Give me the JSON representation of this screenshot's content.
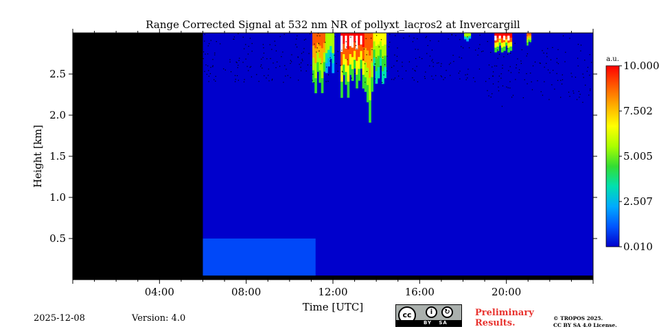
{
  "chart_data": {
    "type": "heatmap",
    "title": "Range Corrected Signal at 532 nm NR of pollyxt_lacros2 at Invercargill",
    "xlabel": "Time [UTC]",
    "ylabel": "Height [km]",
    "xlim_hours": [
      0,
      24
    ],
    "ylim_km": [
      0,
      3.0
    ],
    "x_ticks": [
      {
        "hour": 4,
        "label": "04:00"
      },
      {
        "hour": 8,
        "label": "08:00"
      },
      {
        "hour": 12,
        "label": "12:00"
      },
      {
        "hour": 16,
        "label": "16:00"
      },
      {
        "hour": 20,
        "label": "20:00"
      }
    ],
    "y_ticks": [
      {
        "km": 0.5,
        "label": "0.5"
      },
      {
        "km": 1.0,
        "label": "1.0"
      },
      {
        "km": 1.5,
        "label": "1.5"
      },
      {
        "km": 2.0,
        "label": "2.0"
      },
      {
        "km": 2.5,
        "label": "2.5"
      }
    ],
    "no_data_interval_hours": [
      0,
      6
    ],
    "background_signal": 0.6,
    "boundary_layer": [
      {
        "start_hour": 6.0,
        "end_hour": 11.2,
        "top_km": 0.5,
        "signal": 1.7
      },
      {
        "start_hour": 11.2,
        "end_hour": 24.0,
        "top_km": 0.05,
        "signal": 1.6
      }
    ],
    "cloud_events": [
      {
        "start_hour": 11.0,
        "end_hour": 11.6,
        "base_km": 2.25,
        "peak_signal": 9.0
      },
      {
        "start_hour": 11.6,
        "end_hour": 12.0,
        "base_km": 2.5,
        "peak_signal": 6.0
      },
      {
        "start_hour": 12.3,
        "end_hour": 12.8,
        "base_km": 2.2,
        "peak_signal": 9.5
      },
      {
        "start_hour": 12.8,
        "end_hour": 13.4,
        "base_km": 2.3,
        "peak_signal": 10.0
      },
      {
        "start_hour": 13.4,
        "end_hour": 13.8,
        "base_km": 1.9,
        "peak_signal": 9.0
      },
      {
        "start_hour": 13.8,
        "end_hour": 14.4,
        "base_km": 2.35,
        "peak_signal": 7.0
      },
      {
        "start_hour": 18.0,
        "end_hour": 18.3,
        "base_km": 2.9,
        "peak_signal": 6.0
      },
      {
        "start_hour": 19.4,
        "end_hour": 20.2,
        "base_km": 2.75,
        "peak_signal": 10.0
      },
      {
        "start_hour": 20.9,
        "end_hour": 21.1,
        "base_km": 2.85,
        "peak_signal": 9.0
      }
    ],
    "colorbar": {
      "unit": "a.u.",
      "ticks": [
        "0.010",
        "2.507",
        "5.005",
        "7.502",
        "10.000"
      ],
      "range": [
        0.01,
        10.0
      ],
      "colors": [
        "#0000cc",
        "#0055ff",
        "#00aaff",
        "#00e0b0",
        "#33dd33",
        "#aaff00",
        "#ffff00",
        "#ffb000",
        "#ff5a00",
        "#ff0000"
      ]
    }
  },
  "footer": {
    "date": "2025-12-08",
    "version": "Version: 4.0",
    "preliminary_line1": "Preliminary",
    "preliminary_line2": "Results.",
    "license_line1": "© TROPOS 2025.",
    "license_line2": "CC BY SA 4.0 License.",
    "cc_badge": {
      "label": "cc",
      "by": "BY",
      "sa": "SA"
    }
  }
}
